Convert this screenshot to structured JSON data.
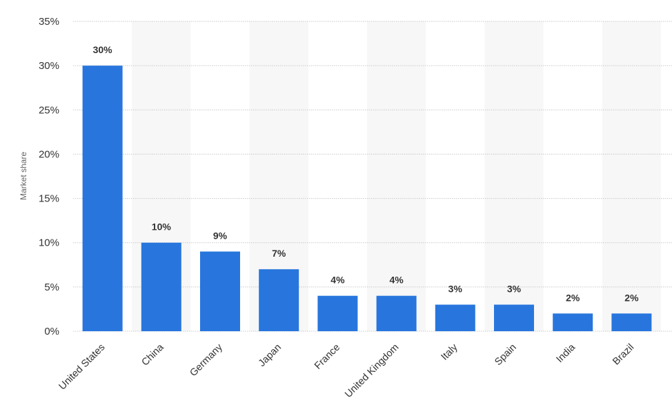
{
  "chart_data": {
    "type": "bar",
    "title": "",
    "xlabel": "",
    "ylabel": "Market share",
    "categories": [
      "United States",
      "China",
      "Germany",
      "Japan",
      "France",
      "United Kingdom",
      "Italy",
      "Spain",
      "India",
      "Brazil"
    ],
    "values": [
      30,
      10,
      9,
      7,
      4,
      4,
      3,
      3,
      2,
      2
    ],
    "data_labels": [
      "30%",
      "10%",
      "9%",
      "7%",
      "4%",
      "4%",
      "3%",
      "3%",
      "2%",
      "2%"
    ],
    "yticks": [
      0,
      5,
      10,
      15,
      20,
      25,
      30,
      35
    ],
    "ytick_labels": [
      "0%",
      "5%",
      "10%",
      "15%",
      "20%",
      "25%",
      "30%",
      "35%"
    ],
    "ylim": [
      0,
      35
    ],
    "grid": true,
    "legend": "none",
    "bar_color": "#2876dd",
    "band_color": "#f7f7f7"
  }
}
